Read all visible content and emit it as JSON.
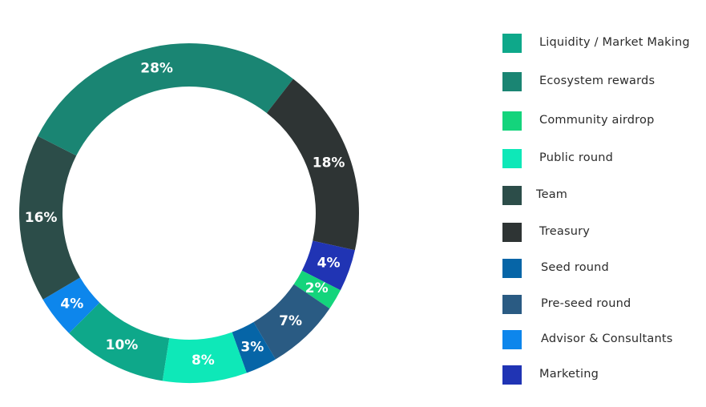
{
  "chart_data": {
    "type": "pie",
    "variant": "donut",
    "slices": [
      {
        "legend": "Liquidity / Market Making",
        "label": "10%",
        "value": 10,
        "color": "#0ea88a"
      },
      {
        "legend": "Advisor & Consultants",
        "label": "4%",
        "value": 4,
        "color": "#0d86ec"
      },
      {
        "legend": "Team",
        "label": "16%",
        "value": 16,
        "color": "#2c4d49"
      },
      {
        "legend": "Ecosystem rewards",
        "label": "28%",
        "value": 28,
        "color": "#1a8573"
      },
      {
        "legend": "Treasury",
        "label": "18%",
        "value": 18,
        "color": "#2e3434"
      },
      {
        "legend": "Marketing",
        "label": "4%",
        "value": 4,
        "color": "#2034b4"
      },
      {
        "legend": "Community airdrop",
        "label": "2%",
        "value": 2,
        "color": "#14d47c"
      },
      {
        "legend": "Pre-seed round",
        "label": "7%",
        "value": 7,
        "color": "#2a5b83"
      },
      {
        "legend": "Seed round",
        "label": "3%",
        "value": 3,
        "color": "#0665a7"
      },
      {
        "legend": "Public round",
        "label": "8%",
        "value": 8,
        "color": "#0ee8b8"
      }
    ],
    "legend": {
      "placement": "right",
      "items": [
        {
          "label": "Liquidity / Market Making",
          "color": "#0ea88a"
        },
        {
          "label": "Ecosystem rewards",
          "color": "#1a8573"
        },
        {
          "label": "Community airdrop",
          "color": "#14d47c"
        },
        {
          "label": "Public round",
          "color": "#0ee8b8"
        },
        {
          "label": "Team",
          "color": "#2c4d49"
        },
        {
          "label": "Treasury",
          "color": "#2e3434"
        },
        {
          "label": "Seed round",
          "color": "#0665a7"
        },
        {
          "label": "Pre-seed round",
          "color": "#2a5b83"
        },
        {
          "label": "Advisor & Consultants",
          "color": "#0d86ec"
        },
        {
          "label": "Marketing",
          "color": "#2034b4"
        }
      ]
    }
  }
}
